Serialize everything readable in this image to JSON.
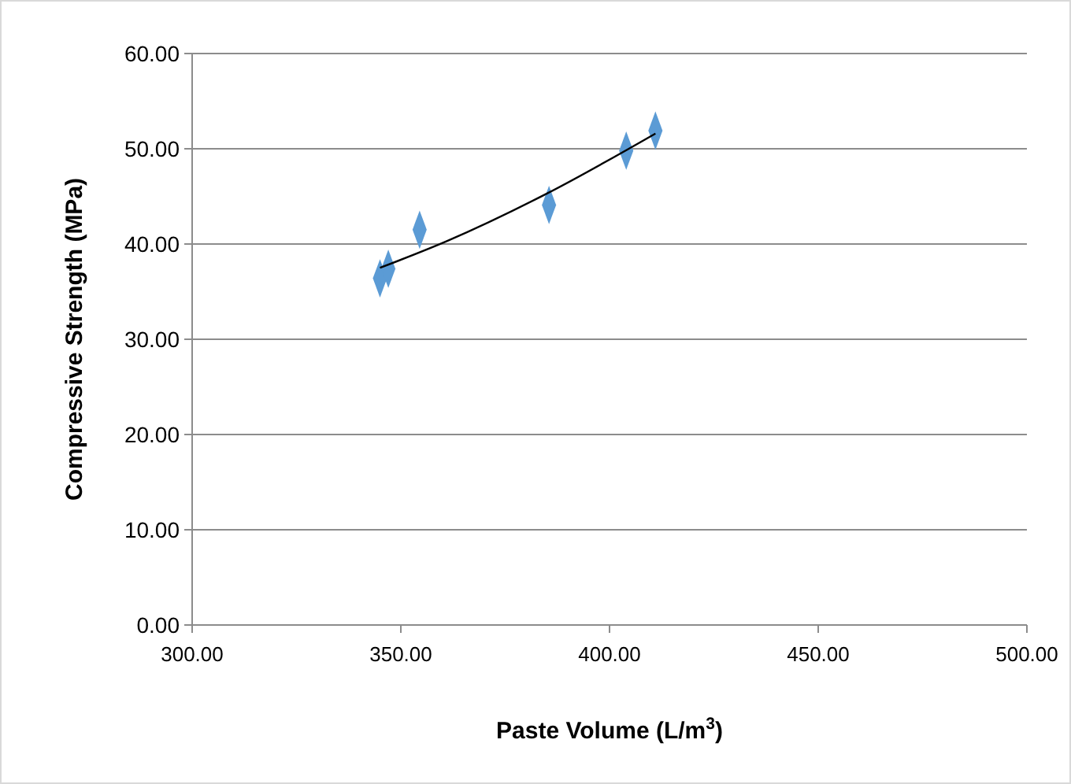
{
  "chart_data": {
    "type": "scatter",
    "xlabel": "Paste Volume (L/m$^{3}$)",
    "ylabel": "Compressive Strength (MPa)",
    "xlim": [
      300,
      500
    ],
    "xticks": [
      {
        "value": 300,
        "label": "300.00"
      },
      {
        "value": 350,
        "label": "350.00"
      },
      {
        "value": 400,
        "label": "400.00"
      },
      {
        "value": 450,
        "label": "450.00"
      },
      {
        "value": 500,
        "label": "500.00"
      }
    ],
    "ylim": [
      0,
      60
    ],
    "yticks": [
      {
        "value": 0,
        "label": "0.00"
      },
      {
        "value": 10,
        "label": "10.00"
      },
      {
        "value": 20,
        "label": "20.00"
      },
      {
        "value": 30,
        "label": "30.00"
      },
      {
        "value": 40,
        "label": "40.00"
      },
      {
        "value": 50,
        "label": "50.00"
      },
      {
        "value": 60,
        "label": "60.00"
      }
    ],
    "grid": "y",
    "series": [
      {
        "color": "#5b9bd5",
        "marker": "diamond",
        "x": [
          345,
          347,
          354.5,
          385.5,
          404,
          411
        ],
        "values": [
          36.4,
          37.4,
          41.5,
          44.1,
          49.8,
          51.9
        ]
      },
      {
        "type": "line",
        "color": "#000000",
        "marker": "none",
        "line_style": "solid",
        "x": [
          345,
          361,
          385,
          411
        ],
        "values": [
          37.5,
          40.3,
          45.3,
          51.6
        ]
      }
    ]
  }
}
